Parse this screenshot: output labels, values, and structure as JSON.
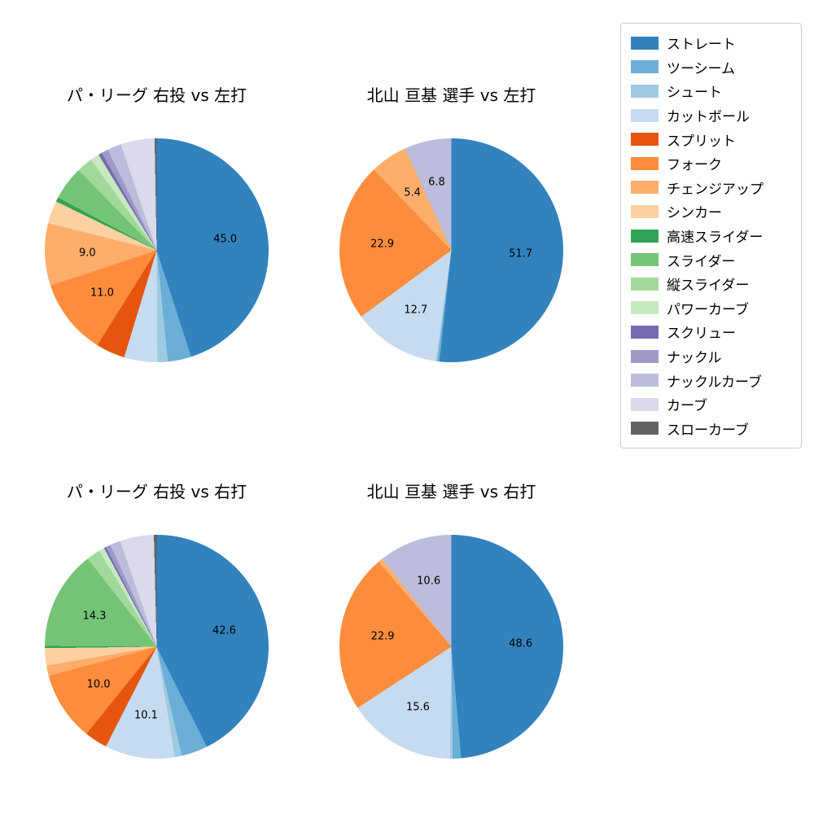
{
  "page": {
    "background": "#ffffff"
  },
  "legend": {
    "items": [
      {
        "label": "ストレート",
        "color": "#3182bd"
      },
      {
        "label": "ツーシーム",
        "color": "#6baed6"
      },
      {
        "label": "シュート",
        "color": "#9ecae1"
      },
      {
        "label": "カットボール",
        "color": "#c6dbef"
      },
      {
        "label": "スプリット",
        "color": "#e6550d"
      },
      {
        "label": "フォーク",
        "color": "#fd8d3c"
      },
      {
        "label": "チェンジアップ",
        "color": "#fdae6b"
      },
      {
        "label": "シンカー",
        "color": "#fdd0a2"
      },
      {
        "label": "高速スライダー",
        "color": "#31a354"
      },
      {
        "label": "スライダー",
        "color": "#74c476"
      },
      {
        "label": "縦スライダー",
        "color": "#a1d99b"
      },
      {
        "label": "パワーカーブ",
        "color": "#c7e9c0"
      },
      {
        "label": "スクリュー",
        "color": "#756bb1"
      },
      {
        "label": "ナックル",
        "color": "#9e9ac8"
      },
      {
        "label": "ナックルカーブ",
        "color": "#bcbddc"
      },
      {
        "label": "カーブ",
        "color": "#dadaeb"
      },
      {
        "label": "スローカーブ",
        "color": "#636363"
      }
    ]
  },
  "chart_data": [
    {
      "type": "pie",
      "title": "パ・リーグ 右投 vs 左打",
      "start_angle": "top",
      "direction": "clockwise",
      "slices": [
        {
          "label": "ストレート",
          "value": 45.0,
          "pct_label": "45.0"
        },
        {
          "label": "ツーシーム",
          "value": 3.4
        },
        {
          "label": "シュート",
          "value": 1.5
        },
        {
          "label": "カットボール",
          "value": 4.8
        },
        {
          "label": "スプリット",
          "value": 4.2
        },
        {
          "label": "フォーク",
          "value": 11.0,
          "pct_label": "11.0"
        },
        {
          "label": "チェンジアップ",
          "value": 9.0,
          "pct_label": "9.0"
        },
        {
          "label": "シンカー",
          "value": 3.3
        },
        {
          "label": "高速スライダー",
          "value": 0.6
        },
        {
          "label": "スライダー",
          "value": 4.9
        },
        {
          "label": "縦スライダー",
          "value": 2.3
        },
        {
          "label": "パワーカーブ",
          "value": 1.3
        },
        {
          "label": "スクリュー",
          "value": 0.5
        },
        {
          "label": "ナックル",
          "value": 1.0
        },
        {
          "label": "ナックルカーブ",
          "value": 2.0
        },
        {
          "label": "カーブ",
          "value": 4.9
        },
        {
          "label": "スローカーブ",
          "value": 0.3
        }
      ]
    },
    {
      "type": "pie",
      "title": "北山 亘基 選手 vs 左打",
      "start_angle": "top",
      "direction": "clockwise",
      "slices": [
        {
          "label": "ストレート",
          "value": 51.7,
          "pct_label": "51.7"
        },
        {
          "label": "ツーシーム",
          "value": 0.3
        },
        {
          "label": "シュート",
          "value": 0.2
        },
        {
          "label": "カットボール",
          "value": 12.7,
          "pct_label": "12.7"
        },
        {
          "label": "フォーク",
          "value": 22.9,
          "pct_label": "22.9"
        },
        {
          "label": "チェンジアップ",
          "value": 5.4,
          "pct_label": "5.4"
        },
        {
          "label": "ナックルカーブ",
          "value": 6.8,
          "pct_label": "6.8"
        }
      ]
    },
    {
      "type": "pie",
      "title": "パ・リーグ 右投 vs 右打",
      "start_angle": "top",
      "direction": "clockwise",
      "slices": [
        {
          "label": "ストレート",
          "value": 42.6,
          "pct_label": "42.6"
        },
        {
          "label": "ツーシーム",
          "value": 3.8
        },
        {
          "label": "シュート",
          "value": 1.0
        },
        {
          "label": "カットボール",
          "value": 10.1,
          "pct_label": "10.1"
        },
        {
          "label": "スプリット",
          "value": 3.3
        },
        {
          "label": "フォーク",
          "value": 10.0,
          "pct_label": "10.0"
        },
        {
          "label": "チェンジアップ",
          "value": 1.5
        },
        {
          "label": "シンカー",
          "value": 2.5
        },
        {
          "label": "高速スライダー",
          "value": 0.3
        },
        {
          "label": "スライダー",
          "value": 14.3,
          "pct_label": "14.3"
        },
        {
          "label": "縦スライダー",
          "value": 2.0
        },
        {
          "label": "パワーカーブ",
          "value": 0.8
        },
        {
          "label": "スクリュー",
          "value": 0.3
        },
        {
          "label": "ナックル",
          "value": 0.7
        },
        {
          "label": "ナックルカーブ",
          "value": 1.5
        },
        {
          "label": "カーブ",
          "value": 4.9
        },
        {
          "label": "スローカーブ",
          "value": 0.4
        }
      ]
    },
    {
      "type": "pie",
      "title": "北山 亘基 選手 vs 右打",
      "start_angle": "top",
      "direction": "clockwise",
      "slices": [
        {
          "label": "ストレート",
          "value": 48.6,
          "pct_label": "48.6"
        },
        {
          "label": "ツーシーム",
          "value": 1.2
        },
        {
          "label": "シュート",
          "value": 0.4
        },
        {
          "label": "カットボール",
          "value": 15.6,
          "pct_label": "15.6"
        },
        {
          "label": "フォーク",
          "value": 22.9,
          "pct_label": "22.9"
        },
        {
          "label": "チェンジアップ",
          "value": 0.7
        },
        {
          "label": "ナックルカーブ",
          "value": 10.6,
          "pct_label": "10.6"
        }
      ]
    }
  ]
}
